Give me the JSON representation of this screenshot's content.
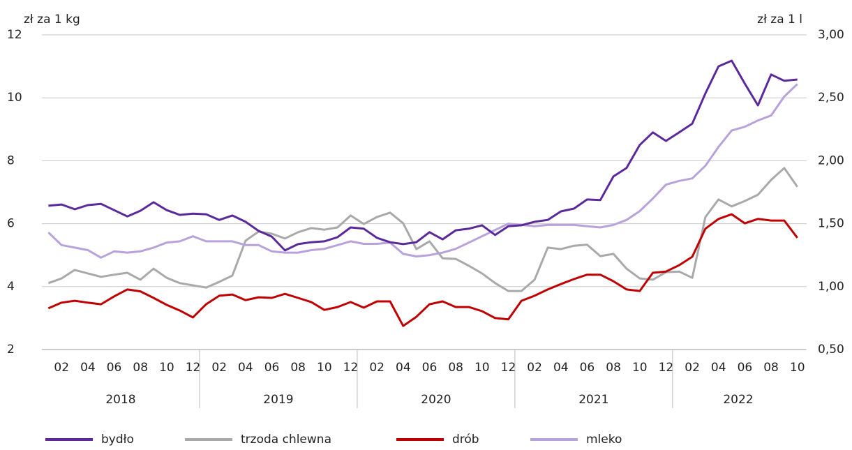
{
  "chart_data": {
    "type": "line",
    "y_label": "zł za 1 kg",
    "y2_label": "zł za 1 l",
    "categories": [
      null,
      "02",
      null,
      "04",
      null,
      "06",
      null,
      "08",
      null,
      "10",
      null,
      "12",
      null,
      "02",
      null,
      "04",
      null,
      "06",
      null,
      "08",
      null,
      "10",
      null,
      "12",
      null,
      "02",
      null,
      "04",
      null,
      "06",
      null,
      "08",
      null,
      "10",
      null,
      "12",
      null,
      "02",
      null,
      "04",
      null,
      "06",
      null,
      "08",
      null,
      "10",
      null,
      "12",
      null,
      "02",
      null,
      "04",
      null,
      "06",
      null,
      "08",
      null,
      "10"
    ],
    "years": [
      "2018",
      "2019",
      "2020",
      "2021",
      "2022"
    ],
    "ylim": [
      2,
      12
    ],
    "yticks": [
      2,
      4,
      6,
      8,
      10,
      12
    ],
    "y2lim": [
      0.5,
      3.0
    ],
    "y2ticks": [
      {
        "value": 0.5,
        "label": "0,50"
      },
      {
        "value": 1.0,
        "label": "1,00"
      },
      {
        "value": 1.5,
        "label": "1,50"
      },
      {
        "value": 2.0,
        "label": "2,00"
      },
      {
        "value": 2.5,
        "label": "2,50"
      },
      {
        "value": 3.0,
        "label": "3,00"
      }
    ],
    "grid": true,
    "legend": "bottom",
    "series": [
      {
        "name": "bydło",
        "color": "#5b2a9a",
        "values": [
          6.57,
          6.61,
          6.46,
          6.59,
          6.63,
          6.43,
          6.23,
          6.41,
          6.68,
          6.43,
          6.28,
          6.32,
          6.3,
          6.12,
          6.26,
          6.06,
          5.77,
          5.59,
          5.15,
          5.35,
          5.41,
          5.44,
          5.57,
          5.88,
          5.84,
          5.55,
          5.41,
          5.35,
          5.41,
          5.73,
          5.5,
          5.79,
          5.84,
          5.95,
          5.64,
          5.92,
          5.95,
          6.06,
          6.12,
          6.39,
          6.48,
          6.77,
          6.75,
          7.5,
          7.77,
          8.5,
          8.9,
          8.63,
          8.9,
          9.18,
          10.14,
          11.0,
          11.18,
          10.45,
          9.76,
          10.74,
          10.54,
          10.58
        ]
      },
      {
        "name": "trzoda chlewna",
        "color": "#a9a9a9",
        "values": [
          4.11,
          4.26,
          4.53,
          4.42,
          4.31,
          4.38,
          4.44,
          4.22,
          4.57,
          4.28,
          4.11,
          4.04,
          3.97,
          4.15,
          4.35,
          5.46,
          5.75,
          5.68,
          5.53,
          5.73,
          5.86,
          5.81,
          5.88,
          6.26,
          5.99,
          6.21,
          6.35,
          6.01,
          5.19,
          5.44,
          4.9,
          4.88,
          4.66,
          4.42,
          4.11,
          3.86,
          3.86,
          4.22,
          5.24,
          5.19,
          5.3,
          5.33,
          4.97,
          5.04,
          4.57,
          4.26,
          4.22,
          4.46,
          4.48,
          4.28,
          6.21,
          6.77,
          6.55,
          6.72,
          6.92,
          7.39,
          7.77,
          7.17
        ]
      },
      {
        "name": "drób",
        "color": "#c00000",
        "values": [
          3.31,
          3.49,
          3.55,
          3.49,
          3.44,
          3.69,
          3.91,
          3.85,
          3.64,
          3.42,
          3.24,
          3.02,
          3.44,
          3.71,
          3.75,
          3.57,
          3.66,
          3.64,
          3.77,
          3.64,
          3.51,
          3.26,
          3.35,
          3.51,
          3.33,
          3.53,
          3.53,
          2.75,
          3.04,
          3.44,
          3.53,
          3.35,
          3.35,
          3.22,
          3.0,
          2.96,
          3.55,
          3.71,
          3.91,
          4.08,
          4.24,
          4.38,
          4.38,
          4.17,
          3.91,
          3.86,
          4.44,
          4.48,
          4.68,
          4.95,
          5.84,
          6.15,
          6.3,
          6.01,
          6.15,
          6.1,
          6.1,
          5.55
        ]
      },
      {
        "name": "mleko",
        "color": "#b8a2dc",
        "axis": "y2",
        "values": [
          1.43,
          1.33,
          1.31,
          1.29,
          1.23,
          1.28,
          1.27,
          1.28,
          1.31,
          1.35,
          1.36,
          1.4,
          1.36,
          1.36,
          1.36,
          1.33,
          1.33,
          1.28,
          1.27,
          1.27,
          1.29,
          1.3,
          1.33,
          1.36,
          1.34,
          1.34,
          1.35,
          1.26,
          1.24,
          1.25,
          1.27,
          1.3,
          1.35,
          1.4,
          1.45,
          1.5,
          1.49,
          1.48,
          1.49,
          1.49,
          1.49,
          1.48,
          1.47,
          1.49,
          1.53,
          1.6,
          1.7,
          1.81,
          1.84,
          1.86,
          1.96,
          2.11,
          2.24,
          2.27,
          2.32,
          2.36,
          2.51,
          2.61
        ]
      }
    ]
  }
}
